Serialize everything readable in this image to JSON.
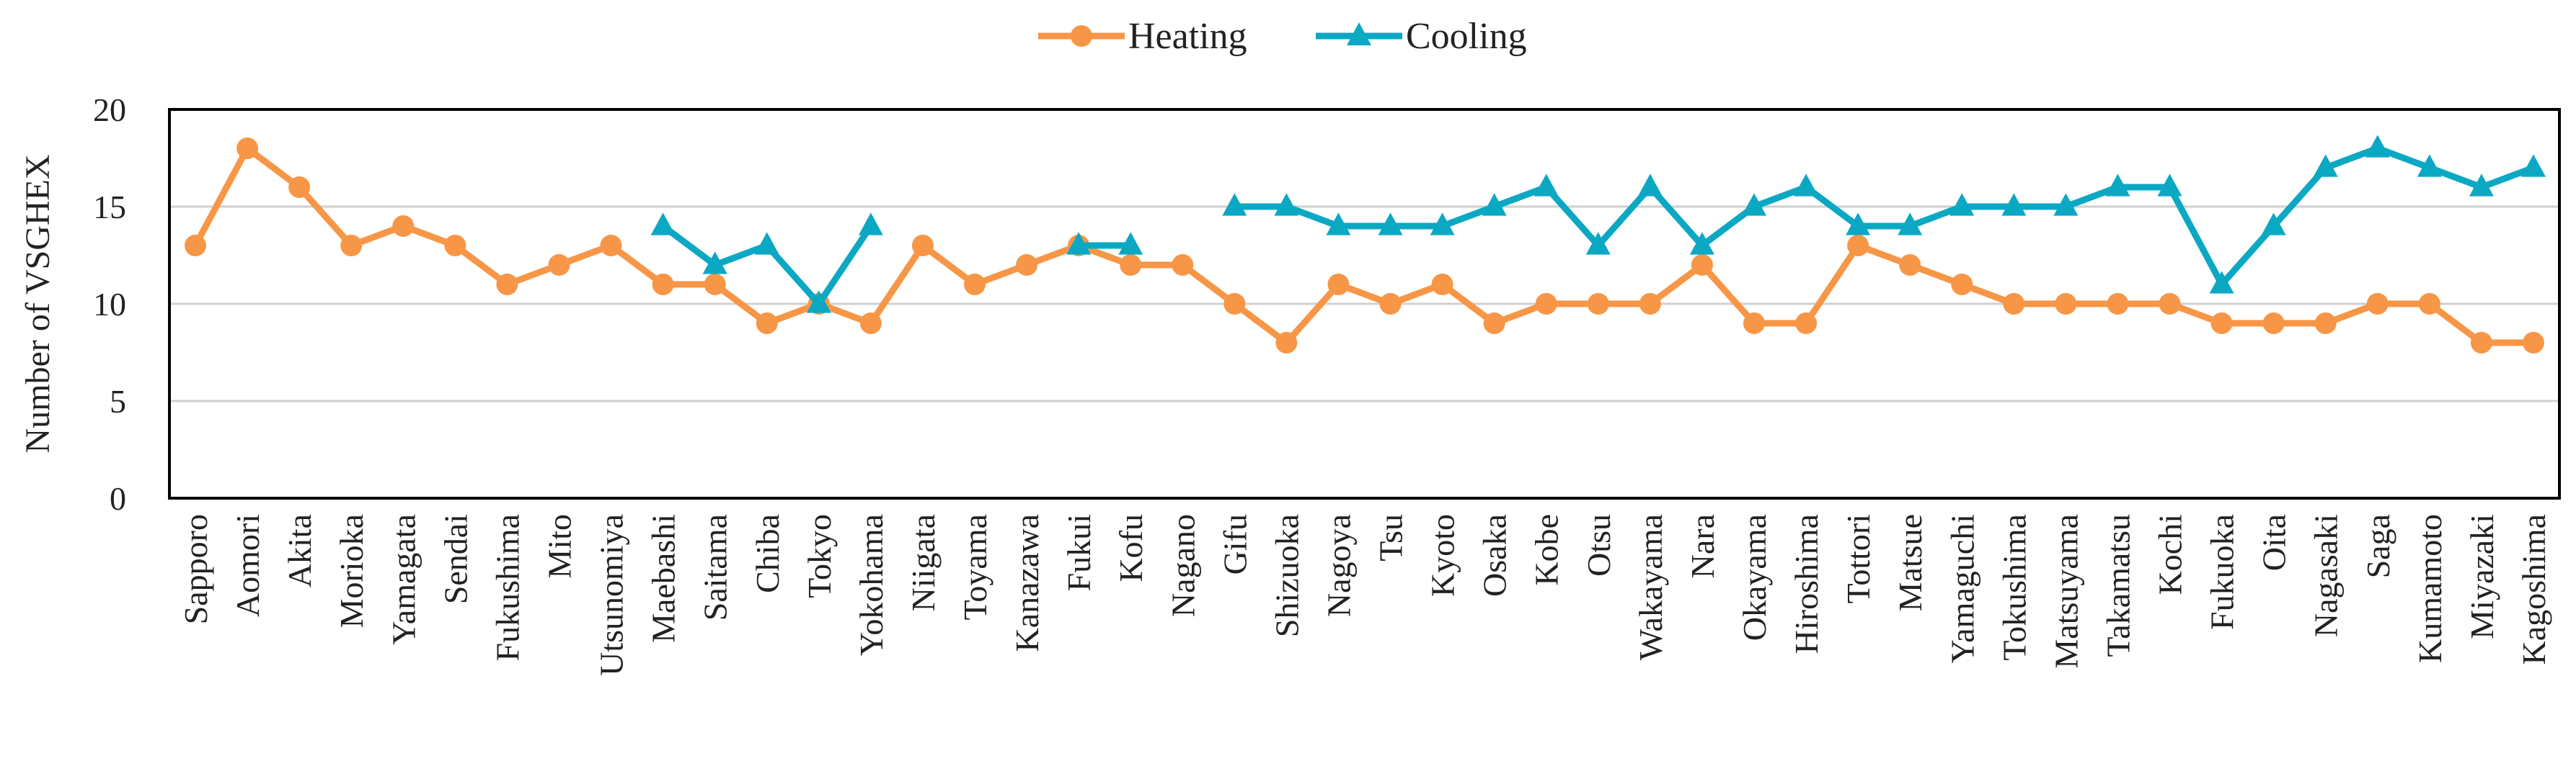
{
  "chart_data": {
    "type": "line",
    "ylabel": "Number of VSGHEX",
    "xlabel": "",
    "ylim": [
      0,
      20
    ],
    "yticks": [
      "0",
      "5",
      "10",
      "15",
      "20"
    ],
    "grid": "horizontal",
    "legend_position": "top-center",
    "categories": [
      "Sapporo",
      "Aomori",
      "Akita",
      "Morioka",
      "Yamagata",
      "Sendai",
      "Fukushima",
      "Mito",
      "Utsunomiya",
      "Maebashi",
      "Saitama",
      "Chiba",
      "Tokyo",
      "Yokohama",
      "Niigata",
      "Toyama",
      "Kanazawa",
      "Fukui",
      "Kofu",
      "Nagano",
      "Gifu",
      "Shizuoka",
      "Nagoya",
      "Tsu",
      "Kyoto",
      "Osaka",
      "Kobe",
      "Otsu",
      "Wakayama",
      "Nara",
      "Okayama",
      "Hiroshima",
      "Tottori",
      "Matsue",
      "Yamaguchi",
      "Tokushima",
      "Matsuyama",
      "Takamatsu",
      "Kochi",
      "Fukuoka",
      "Oita",
      "Nagasaki",
      "Saga",
      "Kumamoto",
      "Miyazaki",
      "Kagoshima"
    ],
    "series": [
      {
        "name": "Heating",
        "color": "#F79646",
        "marker": "circle",
        "values": [
          13,
          18,
          16,
          13,
          14,
          13,
          11,
          12,
          13,
          11,
          11,
          9,
          10,
          9,
          13,
          11,
          12,
          13,
          12,
          12,
          10,
          8,
          11,
          10,
          11,
          9,
          10,
          10,
          10,
          12,
          9,
          9,
          13,
          12,
          11,
          10,
          10,
          10,
          10,
          9,
          9,
          9,
          10,
          10,
          8,
          8
        ]
      },
      {
        "name": "Cooling",
        "color": "#0BA8C4",
        "marker": "triangle",
        "values": [
          null,
          null,
          null,
          null,
          null,
          null,
          null,
          null,
          null,
          14,
          12,
          13,
          10,
          14,
          null,
          null,
          null,
          13,
          13,
          null,
          15,
          15,
          14,
          14,
          14,
          15,
          16,
          13,
          16,
          13,
          15,
          16,
          14,
          14,
          15,
          15,
          15,
          16,
          16,
          11,
          14,
          17,
          18,
          17,
          16,
          17
        ]
      }
    ]
  }
}
